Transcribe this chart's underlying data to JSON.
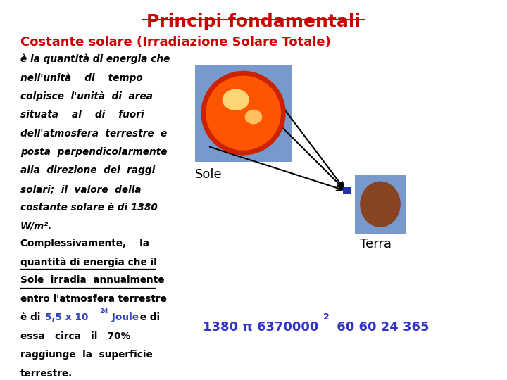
{
  "title": "Principi fondamentali",
  "title_color": "#cc0000",
  "title_fontsize": 18,
  "subtitle": "Costante solare (Irradiazione Solare Totale)",
  "subtitle_color": "#cc0000",
  "subtitle_fontsize": 13,
  "formula_color": "#3333cc",
  "formula_fontsize": 13,
  "sole_label": "Sole",
  "terra_label": "Terra",
  "bg_color": "#ffffff",
  "sun_bg_color": "#7799cc",
  "earth_bg_color": "#7799cc",
  "earth_color": "#884422",
  "arrow_color": "#000000",
  "marker_color": "#2233aa"
}
